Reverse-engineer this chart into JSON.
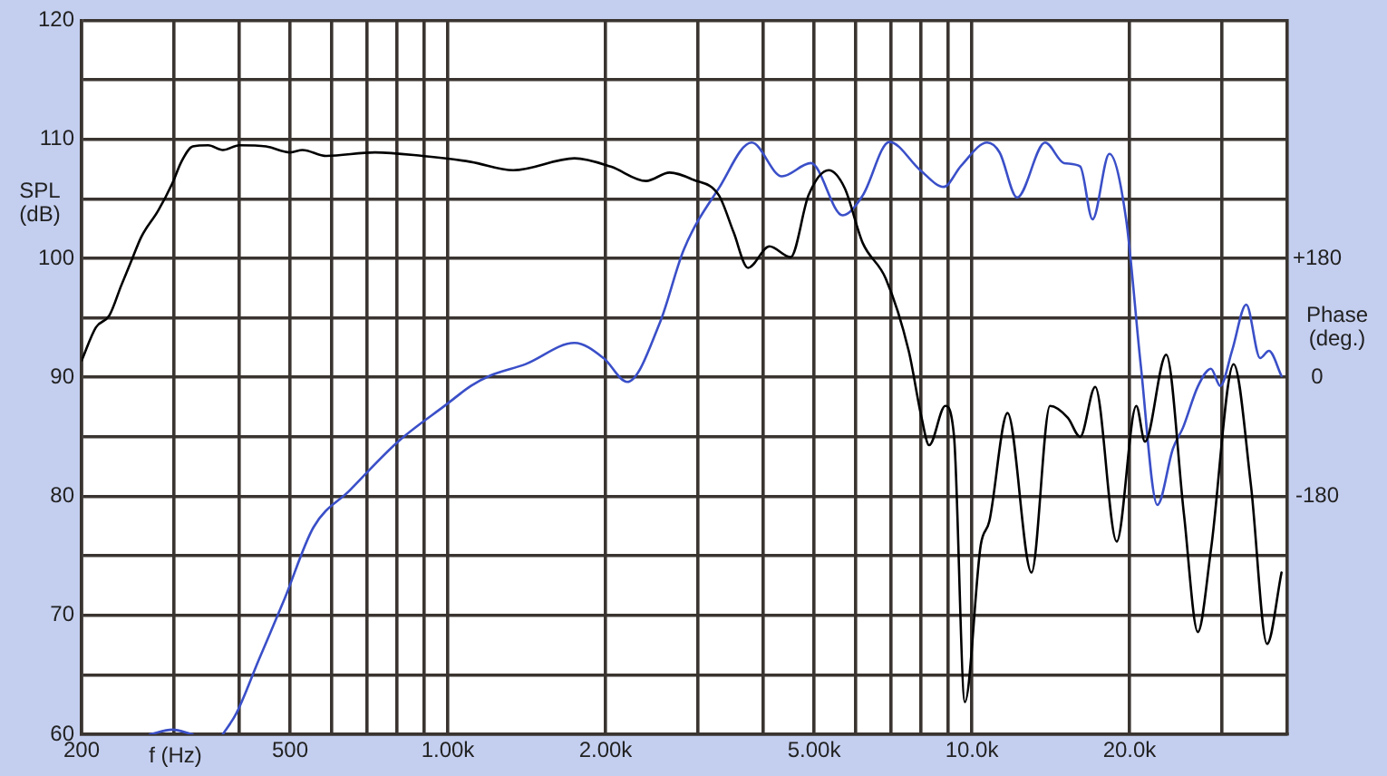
{
  "chart_data": {
    "type": "line",
    "xlabel": "f (Hz)",
    "ylabel": "SPL\n(dB)",
    "y2label": "Phase\n(deg.)",
    "log": "x",
    "grid": true,
    "xlim": [
      200,
      40000
    ],
    "xticks": [
      200,
      {
        "value": 300,
        "label": null
      },
      {
        "value": 400,
        "label": null
      },
      500,
      {
        "value": 600,
        "label": null
      },
      {
        "value": 700,
        "label": null
      },
      {
        "value": 800,
        "label": null
      },
      {
        "value": 900,
        "label": null
      },
      {
        "value": 1000,
        "label": "1.00k"
      },
      {
        "value": 2000,
        "label": "2.00k"
      },
      {
        "value": 3000,
        "label": null
      },
      {
        "value": 4000,
        "label": null
      },
      {
        "value": 5000,
        "label": "5.00k"
      },
      {
        "value": 6000,
        "label": null
      },
      {
        "value": 7000,
        "label": null
      },
      {
        "value": 8000,
        "label": null
      },
      {
        "value": 9000,
        "label": null
      },
      {
        "value": 10000,
        "label": "10.0k"
      },
      {
        "value": 20000,
        "label": "20.0k"
      },
      {
        "value": 30000,
        "label": null
      }
    ],
    "ylim": [
      60,
      120
    ],
    "yticks": [
      60,
      {
        "value": 65,
        "label": null
      },
      70,
      {
        "value": 75,
        "label": null
      },
      80,
      {
        "value": 85,
        "label": null
      },
      90,
      {
        "value": 95,
        "label": null
      },
      100,
      {
        "value": 105,
        "label": null
      },
      110,
      {
        "value": 115,
        "label": null
      },
      120
    ],
    "y2lim": [
      -540,
      540
    ],
    "y2ticks": [
      -180,
      0,
      {
        "value": 180,
        "label": "+180"
      }
    ],
    "series": [
      {
        "type": "line",
        "color": "#000000",
        "x": [
          200,
          213,
          226,
          238,
          249,
          260,
          280,
          298,
          310,
          326,
          349,
          372,
          400,
          450,
          500,
          528,
          586,
          726,
          894,
          1107,
          1333,
          1745,
          2047,
          2390,
          2650,
          2940,
          3290,
          3510,
          3740,
          4110,
          4510,
          4880,
          5330,
          5720,
          6190,
          6850,
          7580,
          8020,
          8290,
          8900,
          9250,
          9700,
          10400,
          10800,
          11700,
          13000,
          14100,
          15250,
          16100,
          17200,
          18900,
          20600,
          21400,
          23500,
          25400,
          27000,
          28600,
          31600,
          34100,
          36600,
          39000
        ],
        "values": [
          91.4,
          94.2,
          95.2,
          97.7,
          99.8,
          101.8,
          104,
          106.3,
          108.1,
          109.4,
          109.5,
          109.1,
          109.5,
          109.4,
          108.9,
          109.1,
          108.6,
          108.9,
          108.6,
          108.1,
          107.4,
          108.4,
          107.7,
          106.5,
          107.2,
          106.6,
          105.3,
          102.2,
          99.2,
          101,
          100.1,
          105.3,
          107.4,
          105.9,
          101.3,
          98.3,
          92.2,
          86.6,
          84.3,
          87.6,
          85,
          62.7,
          75.9,
          77.9,
          87,
          73.6,
          87.6,
          86.6,
          85,
          89.2,
          76.2,
          87.6,
          84.6,
          91.9,
          78.5,
          68.6,
          75.5,
          91.1,
          80.9,
          67.6,
          73.6
        ]
      },
      {
        "type": "line",
        "color": "#3a4fc8",
        "axis": "y2",
        "x": [
          270,
          298,
          326,
          349,
          372,
          395,
          436,
          488,
          554,
          650,
          804,
          998,
          1107,
          1200,
          1408,
          1745,
          1983,
          2200,
          2540,
          2820,
          3290,
          3800,
          4340,
          4930,
          5670,
          6190,
          6960,
          7980,
          8840,
          9540,
          10700,
          11300,
          12200,
          13800,
          15000,
          16100,
          17000,
          18300,
          19700,
          21000,
          22600,
          24200,
          25300,
          27000,
          28600,
          29800,
          31400,
          33400,
          35500,
          36900,
          39000
        ],
        "values": [
          -540,
          -533,
          -540,
          null,
          -540,
          -508,
          -427,
          -335,
          -227,
          -171,
          -97,
          -40,
          -13,
          2,
          20,
          52,
          29,
          -7,
          83,
          193,
          286,
          355,
          304,
          324,
          245,
          275,
          356,
          313,
          288,
          320,
          355,
          340,
          272,
          355,
          324,
          319,
          239,
          338,
          239,
          20,
          -193,
          -108,
          -76,
          -14,
          13,
          -13,
          41,
          110,
          29,
          40,
          2
        ]
      }
    ]
  }
}
